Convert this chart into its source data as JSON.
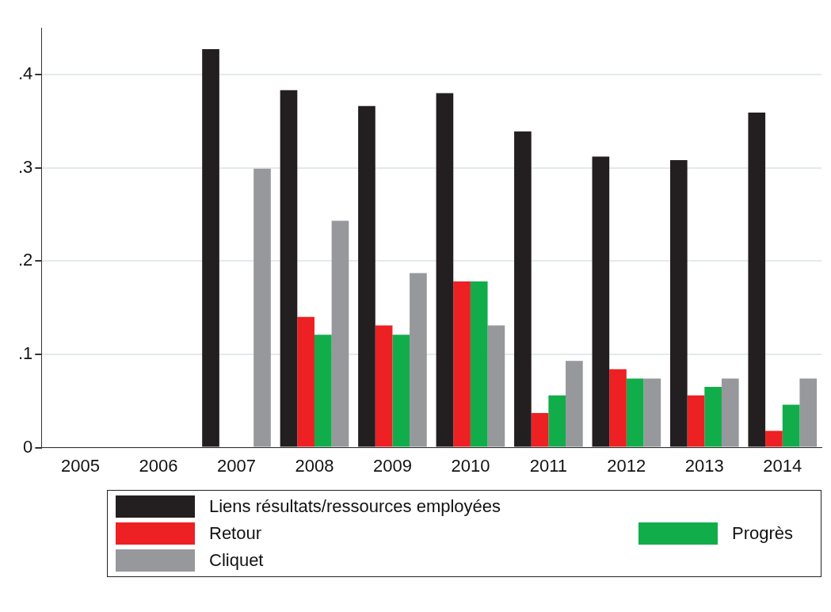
{
  "chart_data": {
    "type": "bar",
    "categories": [
      "2005",
      "2006",
      "2007",
      "2008",
      "2009",
      "2010",
      "2011",
      "2012",
      "2013",
      "2014"
    ],
    "series": [
      {
        "name": "Liens résultats/ressources employées",
        "color": "#231f20",
        "values": [
          null,
          null,
          0.427,
          0.383,
          0.366,
          0.38,
          0.339,
          0.312,
          0.308,
          0.359
        ]
      },
      {
        "name": "Retour",
        "color": "#ed2024",
        "values": [
          null,
          null,
          null,
          0.14,
          0.131,
          0.178,
          0.037,
          0.084,
          0.056,
          0.018
        ]
      },
      {
        "name": "Progrès",
        "color": "#12ad4b",
        "values": [
          null,
          null,
          null,
          0.121,
          0.121,
          0.178,
          0.056,
          0.074,
          0.065,
          0.046
        ]
      },
      {
        "name": "Cliquet",
        "color": "#97989c",
        "values": [
          null,
          null,
          0.299,
          0.243,
          0.187,
          0.131,
          0.093,
          0.074,
          0.074,
          0.074
        ]
      }
    ],
    "ylim": [
      0,
      0.45
    ],
    "yticks": [
      {
        "value": 0,
        "label": "0"
      },
      {
        "value": 0.1,
        "label": ".1"
      },
      {
        "value": 0.2,
        "label": ".2"
      },
      {
        "value": 0.3,
        "label": ".3"
      },
      {
        "value": 0.4,
        "label": ".4"
      }
    ],
    "grid": "y",
    "legend": "bottom"
  }
}
